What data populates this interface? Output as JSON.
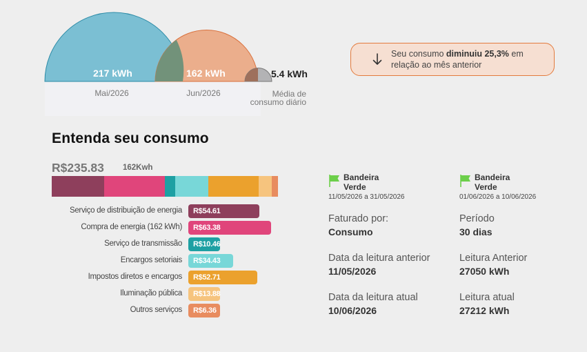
{
  "comparison": {
    "current": {
      "value": "217 kWh",
      "label": "Mai/2026",
      "kwh": 217,
      "color": "#7bbfd3"
    },
    "previous": {
      "value": "162 kWh",
      "label": "Jun/2026",
      "kwh": 162,
      "color": "#ebae8c"
    },
    "daily": {
      "value": "5.4 kWh",
      "label_line1": "Média de",
      "label_line2": "consumo diário",
      "color": "#b3b3b5"
    },
    "notice": {
      "prefix": "Seu consumo ",
      "highlight": "diminuiu 25,3%",
      "suffix": " em relação ao mês anterior"
    }
  },
  "section_title": "Entenda seu consumo",
  "total": {
    "amount": "R$235.83",
    "kwh": "162Kwh"
  },
  "breakdown": [
    {
      "label": "Serviço de distribuição de energia",
      "value": "R$54.61",
      "amount": 54.61,
      "color": "#8e3f5c"
    },
    {
      "label": "Compra de energia (162 kWh)",
      "value": "R$63.38",
      "amount": 63.38,
      "color": "#e0457b"
    },
    {
      "label": "Serviço de transmissão",
      "value": "R$10.46",
      "amount": 10.46,
      "color": "#1ea0a3"
    },
    {
      "label": "Encargos setoriais",
      "value": "R$34.43",
      "amount": 34.43,
      "color": "#78d7d8"
    },
    {
      "label": "Impostos diretos e encargos",
      "value": "R$52.71",
      "amount": 52.71,
      "color": "#eba12d"
    },
    {
      "label": "Iluminação pública",
      "value": "R$13.88",
      "amount": 13.88,
      "color": "#f6c47e"
    },
    {
      "label": "Outros serviços",
      "value": "R$6.36",
      "amount": 6.36,
      "color": "#e88c5f"
    }
  ],
  "flags": [
    {
      "name_line1": "Bandeira",
      "name_line2": "Verde",
      "period": "11/05/2026 a 31/05/2026",
      "color": "#6ccf4a"
    },
    {
      "name_line1": "Bandeira",
      "name_line2": "Verde",
      "period": "01/06/2026 a 10/06/2026",
      "color": "#6ccf4a"
    }
  ],
  "info": {
    "billed_by": {
      "label": "Faturado por:",
      "value": "Consumo"
    },
    "period": {
      "label": "Período",
      "value": "30 dias"
    },
    "prev_reading_date": {
      "label": "Data da leitura anterior",
      "value": "11/05/2026"
    },
    "prev_reading": {
      "label": "Leitura Anterior",
      "value": "27050 kWh"
    },
    "current_reading_date": {
      "label": "Data da leitura atual",
      "value": "10/06/2026"
    },
    "current_reading": {
      "label": "Leitura atual",
      "value": "27212 kWh"
    }
  }
}
